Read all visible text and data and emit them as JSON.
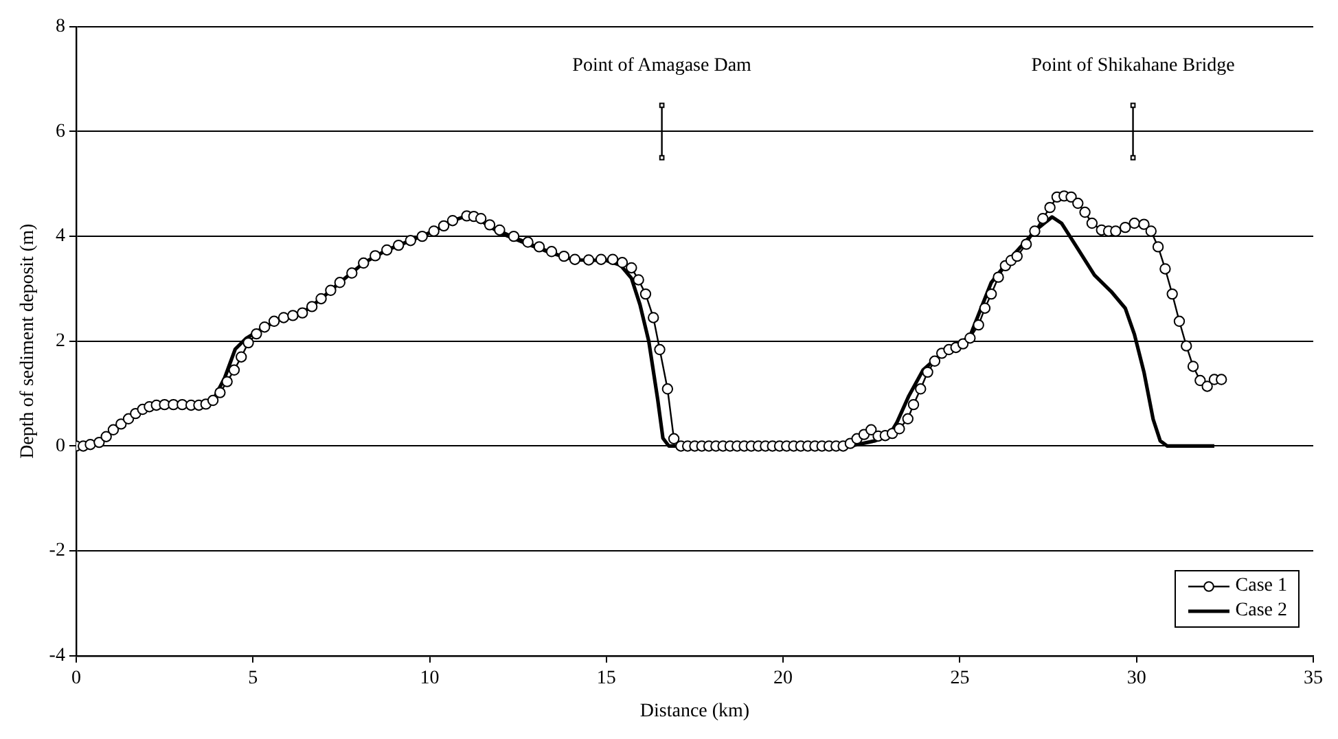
{
  "chart_data": {
    "type": "line",
    "xlabel": "Distance (km)",
    "ylabel": "Depth of sediment deposit (m)",
    "xlim": [
      0,
      35
    ],
    "xticks": [
      0,
      5,
      10,
      15,
      20,
      25,
      30,
      35
    ],
    "ylim": [
      -4,
      8
    ],
    "yticks": [
      -4,
      -2,
      0,
      2,
      4,
      6,
      8
    ],
    "grid": "y",
    "legend": "bottom right",
    "annotations": [
      {
        "text": "Point of Amagase Dam",
        "x": 16.57,
        "y": 6.5
      },
      {
        "text": "Point of Shikahane Bridge",
        "x": 29.9,
        "y": 6.5
      }
    ],
    "series": [
      {
        "name": "Case 1",
        "color": "#000000",
        "marker": "circle",
        "x": [
          0,
          0.2,
          0.4,
          0.65,
          0.85,
          1.05,
          1.27,
          1.48,
          1.68,
          1.88,
          2.07,
          2.27,
          2.5,
          2.75,
          3.0,
          3.25,
          3.47,
          3.67,
          3.87,
          4.07,
          4.27,
          4.47,
          4.67,
          4.87,
          5.1,
          5.33,
          5.6,
          5.87,
          6.13,
          6.4,
          6.67,
          6.93,
          7.2,
          7.46,
          7.8,
          8.13,
          8.46,
          8.79,
          9.12,
          9.46,
          9.79,
          10.12,
          10.4,
          10.65,
          11.05,
          11.25,
          11.45,
          11.7,
          11.98,
          12.38,
          12.78,
          13.1,
          13.45,
          13.8,
          14.11,
          14.5,
          14.85,
          15.18,
          15.45,
          15.71,
          15.91,
          16.11,
          16.33,
          16.51,
          16.73,
          16.91,
          17.11,
          17.3,
          17.5,
          17.7,
          17.9,
          18.1,
          18.3,
          18.5,
          18.7,
          18.9,
          19.1,
          19.3,
          19.5,
          19.7,
          19.9,
          20.1,
          20.3,
          20.5,
          20.7,
          20.9,
          21.1,
          21.3,
          21.5,
          21.7,
          21.9,
          22.09,
          22.29,
          22.49,
          22.69,
          22.89,
          23.09,
          23.29,
          23.53,
          23.69,
          23.89,
          24.09,
          24.29,
          24.49,
          24.69,
          24.89,
          25.09,
          25.29,
          25.53,
          25.71,
          25.89,
          26.09,
          26.29,
          26.45,
          26.62,
          26.88,
          27.12,
          27.35,
          27.55,
          27.75,
          27.95,
          28.15,
          28.34,
          28.54,
          28.74,
          29.01,
          29.21,
          29.41,
          29.68,
          29.94,
          30.21,
          30.41,
          30.61,
          30.81,
          31.01,
          31.21,
          31.41,
          31.6,
          31.8,
          32.0,
          32.2,
          32.4
        ],
        "values": [
          0,
          0,
          0.03,
          0.07,
          0.18,
          0.31,
          0.42,
          0.52,
          0.62,
          0.7,
          0.75,
          0.78,
          0.79,
          0.79,
          0.79,
          0.78,
          0.78,
          0.8,
          0.87,
          1.02,
          1.23,
          1.45,
          1.7,
          1.97,
          2.14,
          2.27,
          2.38,
          2.45,
          2.49,
          2.54,
          2.66,
          2.81,
          2.97,
          3.12,
          3.3,
          3.49,
          3.63,
          3.74,
          3.83,
          3.92,
          4.0,
          4.1,
          4.2,
          4.3,
          4.39,
          4.38,
          4.34,
          4.22,
          4.12,
          4.0,
          3.89,
          3.8,
          3.71,
          3.62,
          3.56,
          3.55,
          3.56,
          3.56,
          3.5,
          3.4,
          3.17,
          2.9,
          2.45,
          1.84,
          1.09,
          0.14,
          0,
          0,
          0,
          0,
          0,
          0,
          0,
          0,
          0,
          0,
          0,
          0,
          0,
          0,
          0,
          0,
          0,
          0,
          0,
          0,
          0,
          0,
          0,
          0,
          0.05,
          0.14,
          0.22,
          0.31,
          0.19,
          0.2,
          0.24,
          0.33,
          0.52,
          0.79,
          1.09,
          1.41,
          1.62,
          1.77,
          1.84,
          1.88,
          1.95,
          2.06,
          2.31,
          2.63,
          2.9,
          3.22,
          3.44,
          3.54,
          3.62,
          3.85,
          4.1,
          4.34,
          4.55,
          4.75,
          4.77,
          4.75,
          4.63,
          4.46,
          4.25,
          4.12,
          4.1,
          4.1,
          4.17,
          4.25,
          4.23,
          4.1,
          3.8,
          3.38,
          2.9,
          2.38,
          1.91,
          1.52,
          1.25,
          1.14,
          1.27,
          1.27
        ]
      },
      {
        "name": "Case 2",
        "color": "#000000",
        "marker": "none",
        "x": [
          0,
          0.65,
          1.05,
          1.48,
          1.88,
          2.27,
          3.47,
          3.87,
          4.2,
          4.5,
          4.8,
          5.33,
          5.87,
          6.4,
          6.93,
          7.46,
          8.13,
          8.79,
          9.46,
          10.12,
          10.65,
          11.05,
          11.45,
          11.98,
          12.78,
          13.45,
          14.11,
          15.0,
          15.4,
          15.71,
          15.95,
          16.2,
          16.45,
          16.6,
          16.77,
          21.9,
          22.6,
          23.0,
          23.22,
          23.56,
          23.96,
          24.49,
          24.89,
          25.29,
          25.89,
          26.48,
          27.15,
          27.61,
          27.88,
          28.34,
          28.81,
          29.28,
          29.68,
          29.94,
          30.21,
          30.47,
          30.67,
          30.87,
          32.2
        ],
        "values": [
          0,
          0.07,
          0.31,
          0.52,
          0.7,
          0.78,
          0.78,
          0.87,
          1.3,
          1.85,
          2.05,
          2.27,
          2.45,
          2.54,
          2.81,
          3.12,
          3.49,
          3.74,
          3.92,
          4.1,
          4.3,
          4.39,
          4.3,
          4.07,
          3.85,
          3.68,
          3.55,
          3.54,
          3.45,
          3.2,
          2.7,
          2.0,
          0.9,
          0.15,
          0,
          0,
          0.1,
          0.2,
          0.45,
          0.96,
          1.45,
          1.77,
          1.9,
          2.1,
          3.12,
          3.62,
          4.12,
          4.37,
          4.25,
          3.76,
          3.26,
          2.95,
          2.63,
          2.13,
          1.41,
          0.51,
          0.1,
          0,
          0
        ]
      },
      {
        "color": "#000000",
        "marker": "square",
        "x": [
          16.57,
          16.57
        ],
        "values": [
          5.5,
          6.5
        ]
      },
      {
        "color": "#000000",
        "marker": "square",
        "x": [
          29.9,
          29.9
        ],
        "values": [
          5.5,
          6.5
        ]
      }
    ]
  }
}
